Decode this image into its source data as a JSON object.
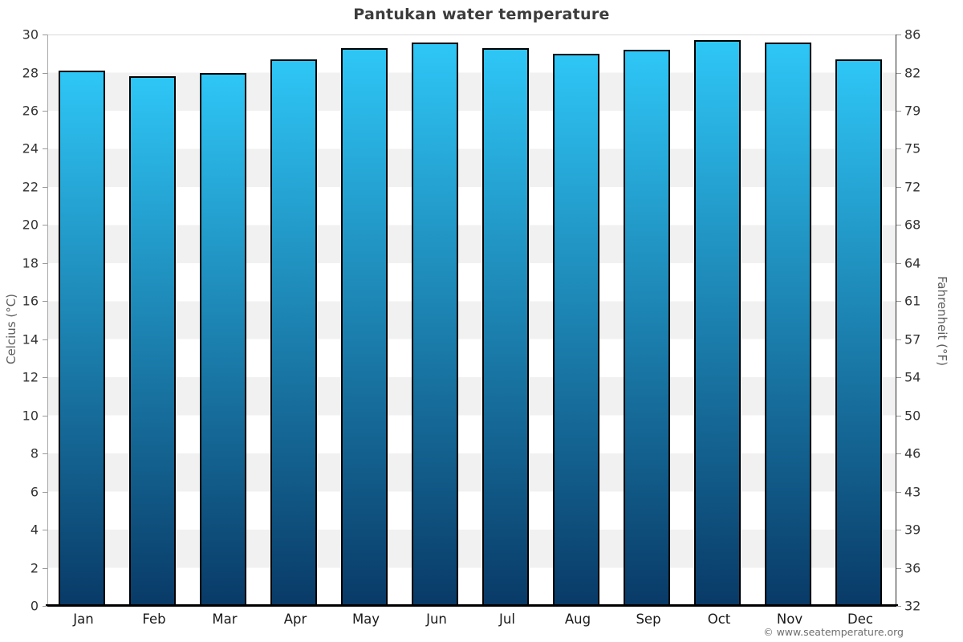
{
  "chart_data": {
    "type": "bar",
    "title": "Pantukan water temperature",
    "categories": [
      "Jan",
      "Feb",
      "Mar",
      "Apr",
      "May",
      "Jun",
      "Jul",
      "Aug",
      "Sep",
      "Oct",
      "Nov",
      "Dec"
    ],
    "values": [
      28.1,
      27.8,
      28.0,
      28.7,
      29.3,
      29.6,
      29.3,
      29.0,
      29.2,
      29.7,
      29.6,
      28.7
    ],
    "series_unit": "°C",
    "ylabel_left": "Celcius (°C)",
    "ylabel_right": "Fahrenheit (°F)",
    "ylim_celsius": [
      0,
      30
    ],
    "celsius_ticks": [
      0,
      2,
      4,
      6,
      8,
      10,
      12,
      14,
      16,
      18,
      20,
      22,
      24,
      26,
      28,
      30
    ],
    "fahrenheit_ticks": [
      32,
      36,
      39,
      43,
      46,
      50,
      54,
      57,
      61,
      64,
      68,
      72,
      75,
      79,
      82,
      86
    ],
    "grid": "alternating horizontal bands every 2°C",
    "legend": "none",
    "colors": {
      "bar_gradient_top": "#2ec6f6",
      "bar_gradient_bottom": "#093a67",
      "bar_border": "#000000",
      "band_gray": "#f1f1f1",
      "band_white": "#ffffff",
      "title_text": "#3c3c3c"
    }
  },
  "footer": {
    "copyright": "© www.seatemperature.org"
  }
}
